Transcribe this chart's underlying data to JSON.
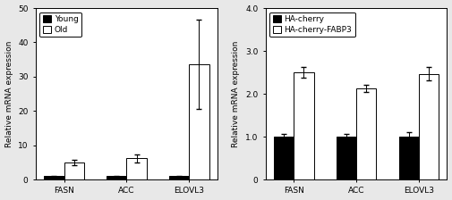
{
  "left": {
    "categories": [
      "FASN",
      "ACC",
      "ELOVL3"
    ],
    "young_values": [
      1.0,
      1.0,
      1.0
    ],
    "young_errors": [
      0.15,
      0.15,
      0.15
    ],
    "old_values": [
      5.0,
      6.2,
      33.5
    ],
    "old_errors": [
      0.8,
      1.2,
      13.0
    ],
    "ylim": [
      0,
      50
    ],
    "yticks": [
      0,
      10,
      20,
      30,
      40,
      50
    ],
    "ylabel": "Relative mRNA expression",
    "legend1": "Young",
    "legend2": "Old",
    "bar_width": 0.32,
    "young_color": "#000000",
    "old_color": "#ffffff",
    "old_edge": "#000000"
  },
  "right": {
    "categories": [
      "FASN",
      "ACC",
      "ELOVL3"
    ],
    "ctrl_values": [
      1.0,
      1.0,
      1.0
    ],
    "ctrl_errors": [
      0.06,
      0.06,
      0.1
    ],
    "fabp3_values": [
      2.5,
      2.13,
      2.47
    ],
    "fabp3_errors": [
      0.13,
      0.09,
      0.16
    ],
    "ylim": [
      0,
      4.0
    ],
    "yticks": [
      0.0,
      1.0,
      2.0,
      3.0,
      4.0
    ],
    "yticklabels": [
      "0",
      "1.0",
      "2.0",
      "3.0",
      "4.0"
    ],
    "ylabel": "Relative mRNA expression",
    "legend1": "HA-cherry",
    "legend2": "HA-cherry-FABP3",
    "bar_width": 0.32,
    "ctrl_color": "#000000",
    "fabp3_color": "#ffffff",
    "fabp3_edge": "#000000"
  },
  "bg_color": "#e8e8e8",
  "plot_bg": "#ffffff"
}
